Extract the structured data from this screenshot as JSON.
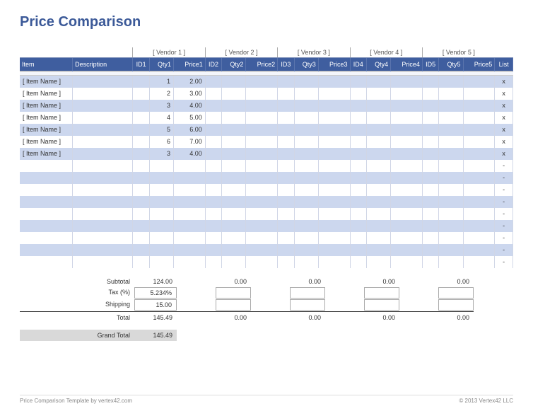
{
  "title": "Price Comparison",
  "vendors": [
    "[ Vendor 1 ]",
    "[ Vendor 2 ]",
    "[ Vendor 3 ]",
    "[ Vendor 4 ]",
    "[ Vendor 5 ]"
  ],
  "columns": {
    "item": "Item",
    "description": "Description",
    "id": [
      "ID1",
      "ID2",
      "ID3",
      "ID4",
      "ID5"
    ],
    "qty": [
      "Qty1",
      "Qty2",
      "Qty3",
      "Qty4",
      "Qty5"
    ],
    "price": [
      "Price1",
      "Price2",
      "Price3",
      "Price4",
      "Price5"
    ],
    "list": "List"
  },
  "rows": [
    {
      "item": "[ Item Name ]",
      "qty1": "1",
      "price1": "2.00",
      "list": "x"
    },
    {
      "item": "[ Item Name ]",
      "qty1": "2",
      "price1": "3.00",
      "list": "x"
    },
    {
      "item": "[ Item Name ]",
      "qty1": "3",
      "price1": "4.00",
      "list": "x"
    },
    {
      "item": "[ Item Name ]",
      "qty1": "4",
      "price1": "5.00",
      "list": "x"
    },
    {
      "item": "[ Item Name ]",
      "qty1": "5",
      "price1": "6.00",
      "list": "x"
    },
    {
      "item": "[ Item Name ]",
      "qty1": "6",
      "price1": "7.00",
      "list": "x"
    },
    {
      "item": "[ Item Name ]",
      "qty1": "3",
      "price1": "4.00",
      "list": "x"
    },
    {
      "item": "",
      "qty1": "",
      "price1": "",
      "list": "-"
    },
    {
      "item": "",
      "qty1": "",
      "price1": "",
      "list": "-"
    },
    {
      "item": "",
      "qty1": "",
      "price1": "",
      "list": "-"
    },
    {
      "item": "",
      "qty1": "",
      "price1": "",
      "list": "-"
    },
    {
      "item": "",
      "qty1": "",
      "price1": "",
      "list": "-"
    },
    {
      "item": "",
      "qty1": "",
      "price1": "",
      "list": "-"
    },
    {
      "item": "",
      "qty1": "",
      "price1": "",
      "list": "-"
    },
    {
      "item": "",
      "qty1": "",
      "price1": "",
      "list": "-"
    },
    {
      "item": "",
      "qty1": "",
      "price1": "",
      "list": "-"
    }
  ],
  "summary": {
    "subtotal_label": "Subtotal",
    "tax_label": "Tax (%)",
    "shipping_label": "Shipping",
    "total_label": "Total",
    "grand_total_label": "Grand Total",
    "subtotal": [
      "124.00",
      "0.00",
      "0.00",
      "0.00",
      "0.00"
    ],
    "tax_rate": "5.234%",
    "shipping": [
      "15.00",
      "",
      "",
      "",
      ""
    ],
    "total": [
      "145.49",
      "0.00",
      "0.00",
      "0.00",
      "0.00"
    ],
    "grand_total": "145.49"
  },
  "footer": {
    "left": "Price Comparison Template by vertex42.com",
    "right": "© 2013 Vertex42 LLC"
  },
  "colors": {
    "title": "#3b5998",
    "header_bg": "#3f5e9f",
    "row_even": "#ccd7ee",
    "row_odd": "#ffffff",
    "grand_total_bg": "#d9d9d9"
  }
}
